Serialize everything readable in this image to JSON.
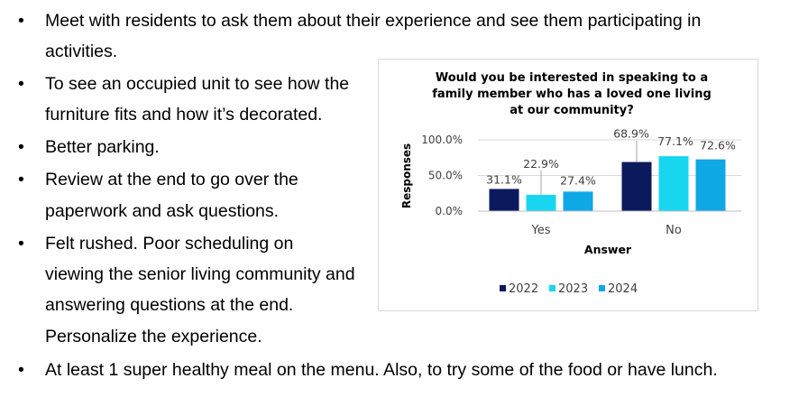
{
  "bullets": [
    {
      "lines": [
        "Meet with residents to ask them about their experience and see them participating in",
        "activities."
      ]
    },
    {
      "lines": [
        "To see an occupied unit to see how the",
        "furniture fits and how it’s decorated."
      ]
    },
    {
      "lines": [
        "Better parking."
      ]
    },
    {
      "lines": [
        "Review at the end to go over the",
        "paperwork and ask questions."
      ]
    },
    {
      "lines": [
        "Felt rushed. Poor scheduling on",
        "viewing the senior living community and",
        "answering questions at the end.",
        "Personalize the experience."
      ]
    },
    {
      "lines": [
        "At least 1 super healthy meal on the menu. Also, to try some of the food or have lunch."
      ]
    }
  ],
  "bullet_symbol": "•",
  "chart_data": {
    "type": "bar",
    "title_lines": [
      "Would you be interested in speaking to a",
      "family member who has a loved one living",
      "at our community?"
    ],
    "xlabel": "Answer",
    "ylabel": "Responses",
    "categories": [
      "Yes",
      "No"
    ],
    "yticks": [
      "0.0%",
      "50.0%",
      "100.0%"
    ],
    "ylim": [
      0,
      100
    ],
    "legend_position": "bottom",
    "grid": true,
    "series": [
      {
        "name": "2022",
        "color": "#0b1a5c",
        "values": [
          31.1,
          68.9
        ],
        "labels": [
          "31.1%",
          "68.9%"
        ]
      },
      {
        "name": "2023",
        "color": "#19d6f0",
        "values": [
          22.9,
          77.1
        ],
        "labels": [
          "22.9%",
          "77.1%"
        ]
      },
      {
        "name": "2024",
        "color": "#0fa8e6",
        "values": [
          27.4,
          72.6
        ],
        "labels": [
          "27.4%",
          "72.6%"
        ]
      }
    ]
  }
}
